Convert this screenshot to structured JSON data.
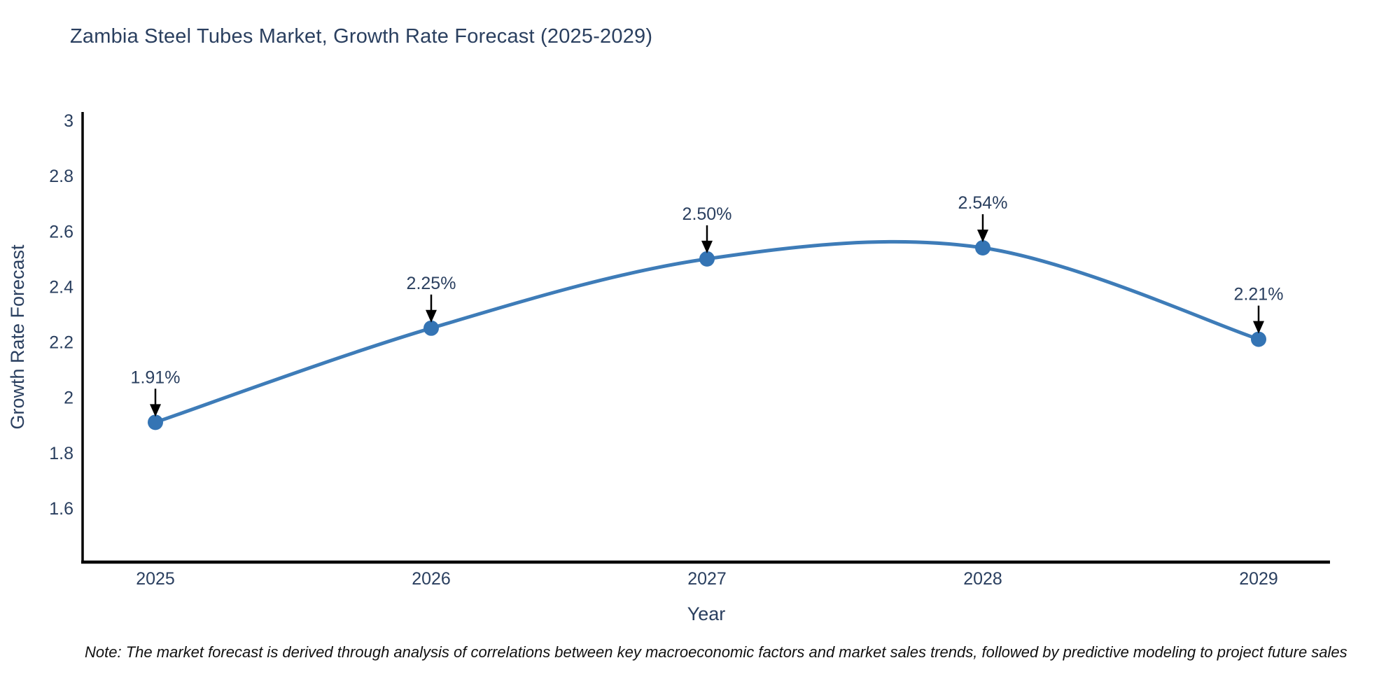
{
  "chart_data": {
    "type": "line",
    "title": "Zambia Steel Tubes Market, Growth Rate Forecast (2025-2029)",
    "xlabel": "Year",
    "ylabel": "Growth Rate Forecast",
    "categories": [
      "2025",
      "2026",
      "2027",
      "2028",
      "2029"
    ],
    "values": [
      1.91,
      2.25,
      2.5,
      2.54,
      2.21
    ],
    "point_labels": [
      "1.91%",
      "2.25%",
      "2.50%",
      "2.54%",
      "2.21%"
    ],
    "series_name": "Growth Rate Forecast",
    "y_tick_labels": [
      "3",
      "2.8",
      "2.6",
      "2.4",
      "2.2",
      "2",
      "1.8",
      "1.6"
    ],
    "y_tick_values": [
      3,
      2.8,
      2.6,
      2.4,
      2.2,
      2,
      1.8,
      1.6
    ],
    "ylim": [
      1.4,
      3.05
    ],
    "grid": false,
    "legend_position": "none",
    "line_shape": "spline",
    "annotation_style": "value-label-with-down-arrow",
    "colors": {
      "line": "#3e7cb8",
      "marker": "#3474b4",
      "axis": "#000000",
      "text": "#2a3f5f",
      "annotation_text": "#2a3f5f",
      "arrow": "#000000",
      "background": "#ffffff"
    }
  },
  "note": "Note: The market forecast is derived through analysis of correlations between key macroeconomic factors and market sales trends, followed by predictive modeling to project future sales"
}
